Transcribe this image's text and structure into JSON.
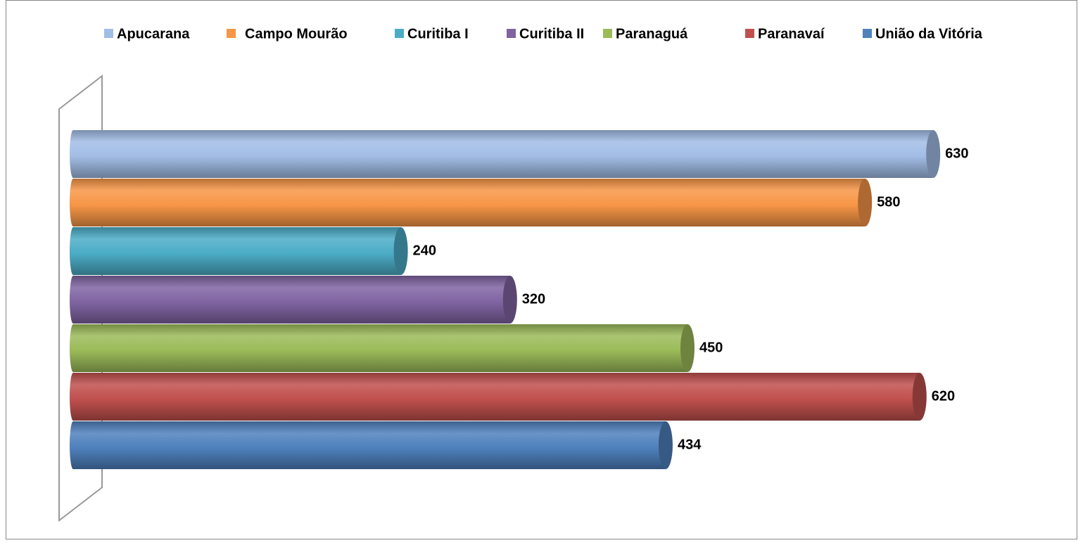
{
  "chart_data": {
    "type": "bar",
    "orientation": "horizontal",
    "series": [
      {
        "name": "Apucarana",
        "color": "#a2bde6",
        "values": [
          630
        ]
      },
      {
        "name": "Campo Mourão",
        "color": "#f79646",
        "values": [
          580
        ]
      },
      {
        "name": "Curitiba I",
        "color": "#4bacc6",
        "values": [
          240
        ]
      },
      {
        "name": "Curitiba II",
        "color": "#8064a2",
        "values": [
          320
        ]
      },
      {
        "name": "Paranaguá",
        "color": "#9bbb59",
        "values": [
          450
        ]
      },
      {
        "name": "Paranavaí",
        "color": "#c0504d",
        "values": [
          620
        ]
      },
      {
        "name": "União da Vitória",
        "color": "#4f81bd",
        "values": [
          434
        ]
      }
    ],
    "xlim": [
      0,
      700
    ],
    "legend": "top"
  }
}
